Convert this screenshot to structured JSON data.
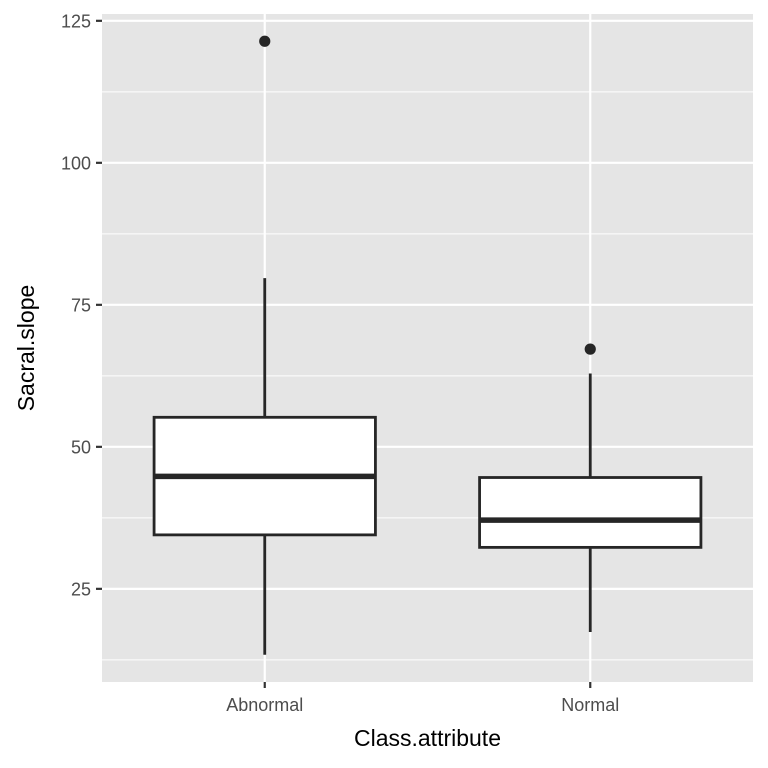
{
  "chart_data": {
    "type": "boxplot",
    "title": "",
    "xlabel": "Class.attribute",
    "ylabel": "Sacral.slope",
    "categories": [
      "Abnormal",
      "Normal"
    ],
    "boxes": [
      {
        "category": "Abnormal",
        "whisker_low": 13.4,
        "q1": 34.5,
        "median": 44.8,
        "q3": 55.2,
        "whisker_high": 79.7,
        "outliers": [
          121.4
        ]
      },
      {
        "category": "Normal",
        "whisker_low": 17.4,
        "q1": 32.3,
        "median": 37.1,
        "q3": 44.6,
        "whisker_high": 62.9,
        "outliers": [
          67.2
        ]
      }
    ],
    "ylim": [
      8.6,
      126.2
    ],
    "y_ticks": [
      25,
      50,
      75,
      100,
      125
    ],
    "y_tick_labels": [
      "25",
      "50",
      "75",
      "100",
      "125"
    ],
    "grid": true,
    "colors": {
      "panel_background": "#e5e5e5",
      "grid_line": "#ffffff",
      "box_fill": "#ffffff",
      "box_line": "#262626",
      "outlier": "#262626",
      "tick_text": "#4d4d4d",
      "tick_mark": "#333333",
      "title_text": "#000000"
    }
  }
}
